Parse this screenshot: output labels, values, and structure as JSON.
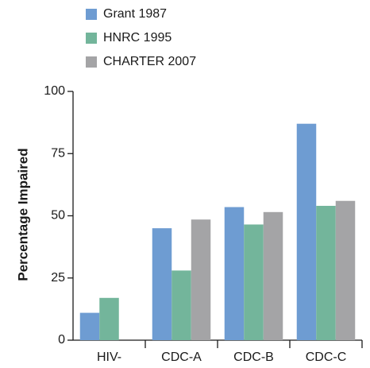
{
  "chart_data": {
    "type": "bar",
    "y_label": "Percentage Impaired",
    "categories": [
      "HIV-",
      "CDC-A",
      "CDC-B",
      "CDC-C"
    ],
    "series": [
      {
        "name": "Grant 1987",
        "color": "#6e9cd2",
        "values": [
          11,
          45,
          53.5,
          87
        ]
      },
      {
        "name": "HNRC 1995",
        "color": "#73b59b",
        "values": [
          17,
          28,
          46.5,
          54
        ]
      },
      {
        "name": "CHARTER 2007",
        "color": "#a4a4a6",
        "values": [
          null,
          48.5,
          51.5,
          56
        ]
      }
    ],
    "ylim": [
      0,
      100
    ],
    "yticks": [
      0,
      25,
      50,
      75,
      100
    ],
    "grid": false
  }
}
